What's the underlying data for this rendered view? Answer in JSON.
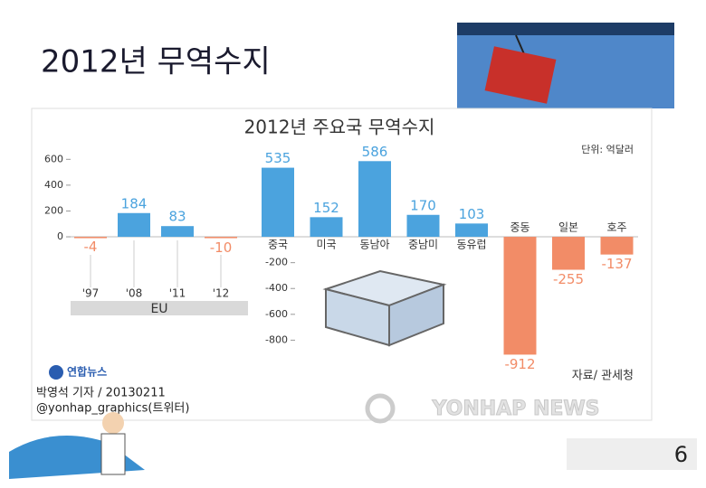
{
  "slide_title": "2012년 무역수지",
  "page_number": "6",
  "chart_data": {
    "type": "bar",
    "title": "2012년 주요국 무역수지",
    "unit": "단위: 억달러",
    "group_label": "EU",
    "categories": [
      "'97",
      "'08",
      "'11",
      "'12",
      "중국",
      "미국",
      "동남아",
      "중남미",
      "동유럽",
      "중동",
      "일본",
      "호주"
    ],
    "values": [
      -4,
      184,
      83,
      -10,
      535,
      152,
      586,
      170,
      103,
      -912,
      -255,
      -137
    ],
    "positive_color": "#4ba3de",
    "negative_color": "#f28c67",
    "ylim": [
      -1000,
      700
    ],
    "yticks": [
      600,
      400,
      200,
      0,
      -200,
      -400,
      -600,
      -800
    ],
    "source": "자료/ 관세청",
    "agency": "연합뉴스",
    "byline": "박영석 기자 / 20130211",
    "twitter": "@yonhap_graphics(트위터)",
    "watermark": "YONHAP NEWS"
  }
}
